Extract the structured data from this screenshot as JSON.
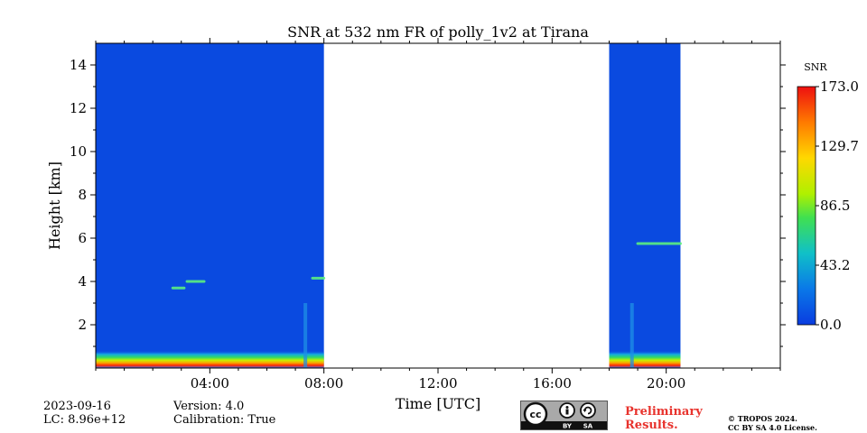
{
  "chart_data": {
    "type": "heatmap",
    "title": "SNR at 532 nm FR of polly_1v2 at Tirana",
    "xlabel": "Time [UTC]",
    "ylabel": "Height [km]",
    "xlim": [
      0,
      24
    ],
    "ylim": [
      0,
      15
    ],
    "x_ticks": [
      {
        "v": 4,
        "label": "04:00"
      },
      {
        "v": 8,
        "label": "08:00"
      },
      {
        "v": 12,
        "label": "12:00"
      },
      {
        "v": 16,
        "label": "16:00"
      },
      {
        "v": 20,
        "label": "20:00"
      }
    ],
    "x_minor_step": 1,
    "y_ticks": [
      2,
      4,
      6,
      8,
      10,
      12,
      14
    ],
    "data_segments": [
      {
        "start": 0,
        "end": 8
      },
      {
        "start": 18,
        "end": 20.5
      }
    ],
    "colorbar": {
      "label": "SNR",
      "min": 0.0,
      "max": 173.0,
      "ticks": [
        "0.0",
        "43.2",
        "86.5",
        "129.7",
        "173.0"
      ]
    },
    "features": [
      {
        "type": "surface-layer",
        "t0": 0,
        "t1": 8,
        "h0": 0,
        "h1": 0.8
      },
      {
        "type": "surface-layer",
        "t0": 18,
        "t1": 20.5,
        "h0": 0,
        "h1": 0.8
      },
      {
        "type": "cloud",
        "t0": 2.7,
        "t1": 3.1,
        "h": 3.7
      },
      {
        "type": "cloud",
        "t0": 3.2,
        "t1": 3.8,
        "h": 4.0
      },
      {
        "type": "cloud",
        "t0": 7.6,
        "t1": 8.0,
        "h": 4.15
      },
      {
        "type": "cloud",
        "t0": 19.0,
        "t1": 20.5,
        "h": 5.75
      },
      {
        "type": "precip-streak",
        "t": 7.35,
        "h0": 0,
        "h1": 3.0
      },
      {
        "type": "precip-streak",
        "t": 18.8,
        "h0": 0,
        "h1": 3.0
      }
    ]
  },
  "footer": {
    "date": "2023-09-16",
    "lc": "LC: 8.96e+12",
    "version": "Version: 4.0",
    "calibration": "Calibration: True",
    "preliminary_line1": "Preliminary",
    "preliminary_line2": "Results.",
    "copyright_line1": "© TROPOS 2024.",
    "copyright_line2": "CC BY SA 4.0 License.",
    "cc_by": "BY",
    "cc_sa": "SA"
  }
}
